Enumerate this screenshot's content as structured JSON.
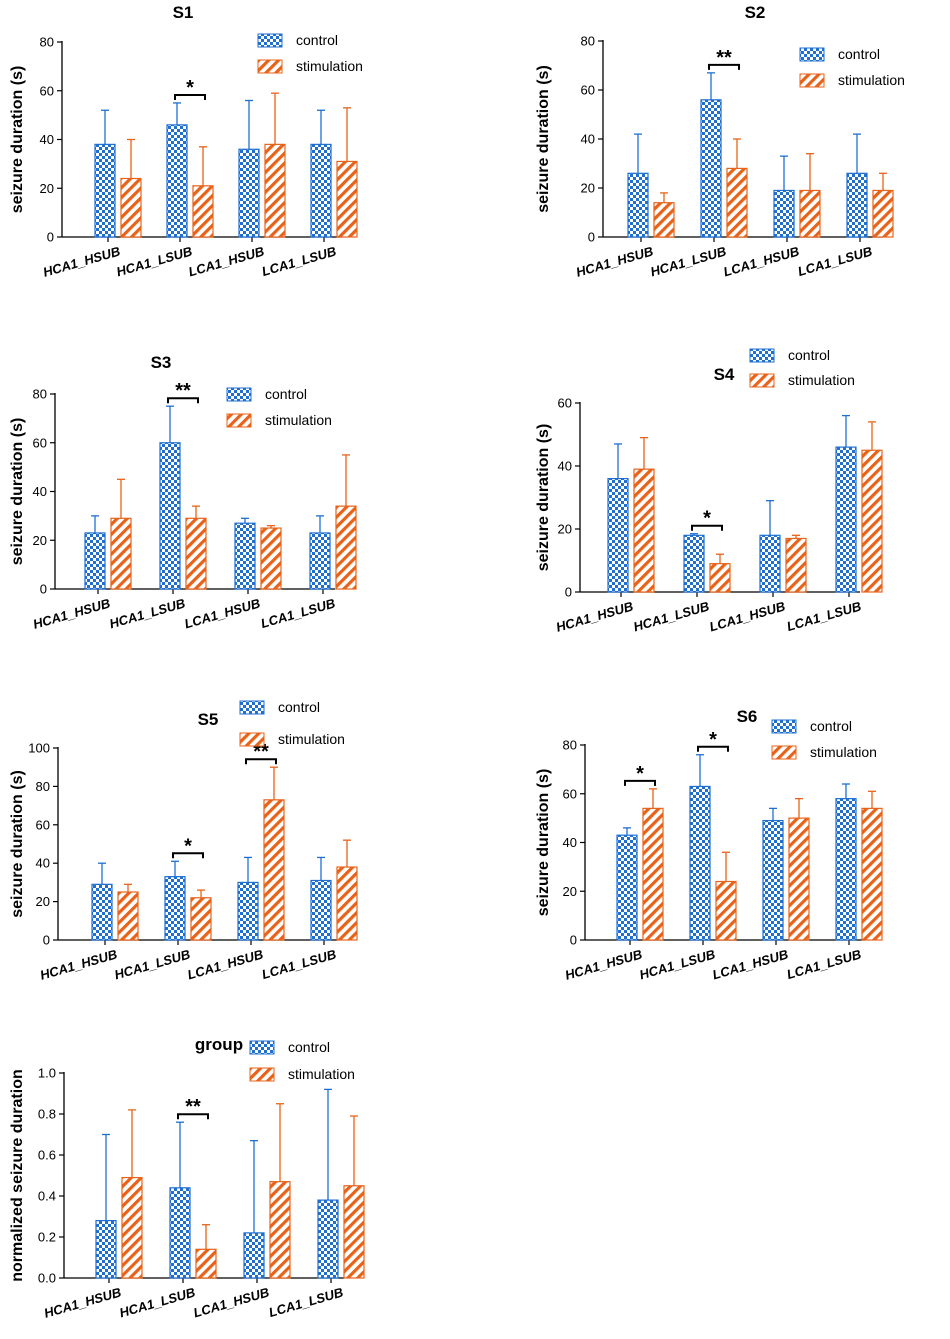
{
  "colors": {
    "control": "#1f6fd1",
    "stimulation": "#e8631a",
    "axis": "#000000"
  },
  "chart_data": [
    {
      "type": "bar",
      "title": "S1",
      "ylabel": "seizure duration (s)",
      "ylim": [
        0,
        80
      ],
      "yticks": [
        "0",
        "20",
        "40",
        "60",
        "80"
      ],
      "categories": [
        "HCA1_HSUB",
        "HCA1_LSUB",
        "LCA1_HSUB",
        "LCA1_LSUB"
      ],
      "legend": [
        "control",
        "stimulation"
      ],
      "series": [
        {
          "name": "control",
          "values": [
            38,
            46,
            36,
            38
          ],
          "errors": [
            52,
            55,
            56,
            52
          ]
        },
        {
          "name": "stimulation",
          "values": [
            24,
            21,
            38,
            31
          ],
          "errors": [
            40,
            37,
            59,
            53
          ]
        }
      ],
      "significance": [
        {
          "category": 1,
          "label": "*"
        }
      ]
    },
    {
      "type": "bar",
      "title": "S2",
      "ylabel": "seizure duration (s)",
      "ylim": [
        0,
        80
      ],
      "yticks": [
        "0",
        "20",
        "40",
        "60",
        "80"
      ],
      "categories": [
        "HCA1_HSUB",
        "HCA1_LSUB",
        "LCA1_HSUB",
        "LCA1_LSUB"
      ],
      "legend": [
        "control",
        "stimulation"
      ],
      "series": [
        {
          "name": "control",
          "values": [
            26,
            56,
            19,
            26
          ],
          "errors": [
            42,
            67,
            33,
            42
          ]
        },
        {
          "name": "stimulation",
          "values": [
            14,
            28,
            19,
            19
          ],
          "errors": [
            18,
            40,
            34,
            26
          ]
        }
      ],
      "significance": [
        {
          "category": 1,
          "label": "**"
        }
      ]
    },
    {
      "type": "bar",
      "title": "S3",
      "ylabel": "seizure duration (s)",
      "ylim": [
        0,
        80
      ],
      "yticks": [
        "0",
        "20",
        "40",
        "60",
        "80"
      ],
      "categories": [
        "HCA1_HSUB",
        "HCA1_LSUB",
        "LCA1_HSUB",
        "LCA1_LSUB"
      ],
      "legend": [
        "control",
        "stimulation"
      ],
      "series": [
        {
          "name": "control",
          "values": [
            23,
            60,
            27,
            23
          ],
          "errors": [
            30,
            75,
            29,
            30
          ]
        },
        {
          "name": "stimulation",
          "values": [
            29,
            29,
            25,
            34
          ],
          "errors": [
            45,
            34,
            26,
            55
          ]
        }
      ],
      "significance": [
        {
          "category": 1,
          "label": "**"
        }
      ]
    },
    {
      "type": "bar",
      "title": "S4",
      "ylabel": "seizure duration (s)",
      "ylim": [
        0,
        60
      ],
      "yticks": [
        "0",
        "20",
        "40",
        "60"
      ],
      "categories": [
        "HCA1_HSUB",
        "HCA1_LSUB",
        "LCA1_HSUB",
        "LCA1_LSUB"
      ],
      "legend": [
        "control",
        "stimulation"
      ],
      "series": [
        {
          "name": "control",
          "values": [
            36,
            18,
            18,
            46
          ],
          "errors": [
            47,
            18.5,
            29,
            56
          ]
        },
        {
          "name": "stimulation",
          "values": [
            39,
            9,
            17,
            45
          ],
          "errors": [
            49,
            12,
            18,
            54
          ]
        }
      ],
      "significance": [
        {
          "category": 1,
          "label": "*"
        }
      ]
    },
    {
      "type": "bar",
      "title": "S5",
      "ylabel": "seizure duration (s)",
      "ylim": [
        0,
        100
      ],
      "yticks": [
        "0",
        "20",
        "40",
        "60",
        "80",
        "100"
      ],
      "categories": [
        "HCA1_HSUB",
        "HCA1_LSUB",
        "LCA1_HSUB",
        "LCA1_LSUB"
      ],
      "legend": [
        "control",
        "stimulation"
      ],
      "series": [
        {
          "name": "control",
          "values": [
            29,
            33,
            30,
            31
          ],
          "errors": [
            40,
            41,
            43,
            43
          ]
        },
        {
          "name": "stimulation",
          "values": [
            25,
            22,
            73,
            38
          ],
          "errors": [
            29,
            26,
            90,
            52
          ]
        }
      ],
      "significance": [
        {
          "category": 1,
          "label": "*"
        },
        {
          "category": 2,
          "label": "**"
        }
      ]
    },
    {
      "type": "bar",
      "title": "S6",
      "ylabel": "seizure duration (s)",
      "ylim": [
        0,
        80
      ],
      "yticks": [
        "0",
        "20",
        "40",
        "60",
        "80"
      ],
      "categories": [
        "HCA1_HSUB",
        "HCA1_LSUB",
        "LCA1_HSUB",
        "LCA1_LSUB"
      ],
      "legend": [
        "control",
        "stimulation"
      ],
      "series": [
        {
          "name": "control",
          "values": [
            43,
            63,
            49,
            58
          ],
          "errors": [
            46,
            76,
            54,
            64
          ]
        },
        {
          "name": "stimulation",
          "values": [
            54,
            24,
            50,
            54
          ],
          "errors": [
            62,
            36,
            58,
            61
          ]
        }
      ],
      "significance": [
        {
          "category": 0,
          "label": "*"
        },
        {
          "category": 1,
          "label": "*"
        }
      ]
    },
    {
      "type": "bar",
      "title": "group",
      "ylabel": "normalized seizure duration",
      "ylim": [
        0,
        1.0
      ],
      "yticks": [
        "0.0",
        "0.2",
        "0.4",
        "0.6",
        "0.8",
        "1.0"
      ],
      "categories": [
        "HCA1_HSUB",
        "HCA1_LSUB",
        "LCA1_HSUB",
        "LCA1_LSUB"
      ],
      "legend": [
        "control",
        "stimulation"
      ],
      "series": [
        {
          "name": "control",
          "values": [
            0.28,
            0.44,
            0.22,
            0.38
          ],
          "errors": [
            0.7,
            0.76,
            0.67,
            0.92
          ]
        },
        {
          "name": "stimulation",
          "values": [
            0.49,
            0.14,
            0.47,
            0.45
          ],
          "errors": [
            0.82,
            0.26,
            0.85,
            0.79
          ]
        }
      ],
      "significance": [
        {
          "category": 1,
          "label": "**"
        }
      ]
    }
  ]
}
